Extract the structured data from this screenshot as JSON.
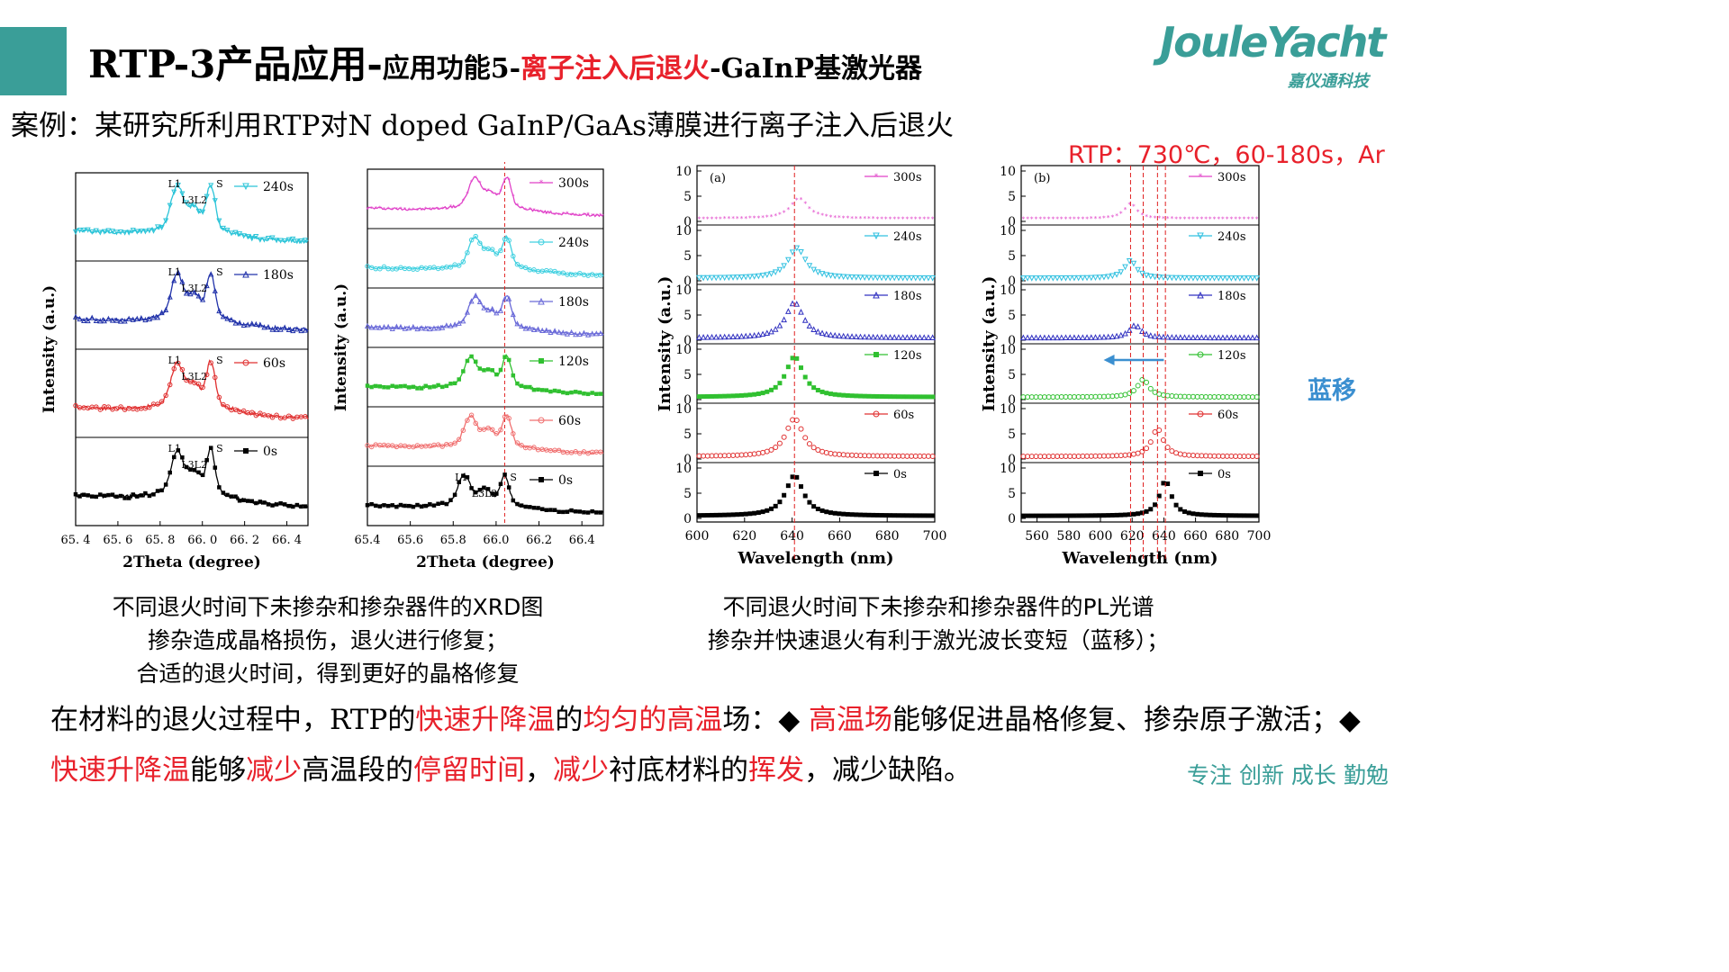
{
  "header": {
    "title_main": "RTP-3产品应用-",
    "title_sub1": "应用功能5-",
    "title_red": "离子注入后退火",
    "title_sub2": "-GaInP基激光器",
    "logo_text": "JouleYacht",
    "logo_sub": "嘉仪通科技",
    "accent_color": "#3a9e98"
  },
  "case_text": "案例：某研究所利用RTP对N doped GaInP/GaAs薄膜进行离子注入后退火",
  "rtp_conditions": "RTP：730℃，60-180s，Ar",
  "blue_shift_label": "蓝移",
  "captions": {
    "xrd_line1": "不同退火时间下未掺杂和掺杂器件的XRD图",
    "xrd_line2": "掺杂造成晶格损伤，退火进行修复；",
    "xrd_line3": "合适的退火时间，得到更好的晶格修复",
    "pl_line1": "不同退火时间下未掺杂和掺杂器件的PL光谱",
    "pl_line2": "掺杂并快速退火有利于激光波长变短（蓝移）；"
  },
  "summary": {
    "p1": "在材料的退火过程中，RTP的",
    "r1": "快速升降温",
    "p2": "的",
    "r2": "均匀的高温",
    "p3": "场：◆ ",
    "r3": "高温场",
    "p4": "能够促进晶格修复、掺杂原子激活；◆ ",
    "r4": "快速升降温",
    "p5": "能够",
    "r5": "减少",
    "p6": "高温段的",
    "r6": "停留时间",
    "p7": "，",
    "r7": "减少",
    "p8": "衬底材料的",
    "r8": "挥发",
    "p9": "，减少缺陷。"
  },
  "slogan": "专注 创新 成长 勤勉",
  "chart_data": [
    {
      "type": "line",
      "xlabel": "2Theta (degree)",
      "ylabel": "Intensity (a.u.)",
      "xlim": [
        65.4,
        66.5
      ],
      "xticks": [
        "65. 4",
        "65. 6",
        "65. 8",
        "66. 0",
        "66. 2",
        "66. 4"
      ],
      "xtick_values": [
        65.4,
        65.6,
        65.8,
        66.0,
        66.2,
        66.4
      ],
      "peak_labels": [
        "L1",
        "L3L2",
        "S"
      ],
      "series": [
        {
          "name": "240s",
          "color": "#2bc4d8",
          "marker": "tri-down",
          "peaks": [
            65.88,
            66.04
          ]
        },
        {
          "name": "180s",
          "color": "#2233aa",
          "marker": "tri-up",
          "peaks": [
            65.88,
            66.04
          ]
        },
        {
          "name": "60s",
          "color": "#e03030",
          "marker": "circle",
          "peaks": [
            65.88,
            66.04
          ]
        },
        {
          "name": "0s",
          "color": "#000000",
          "marker": "square",
          "peaks": [
            65.88,
            66.04
          ]
        }
      ]
    },
    {
      "type": "line",
      "xlabel": "2Theta (degree)",
      "ylabel": "Intensity (a.u.)",
      "xlim": [
        65.4,
        66.5
      ],
      "xticks": [
        "65.4",
        "65.6",
        "65.8",
        "66.0",
        "66.2",
        "66.4"
      ],
      "xtick_values": [
        65.4,
        65.6,
        65.8,
        66.0,
        66.2,
        66.4
      ],
      "reference_line_x": 66.04,
      "peak_labels": [
        "L1",
        "L3L2",
        "S"
      ],
      "series": [
        {
          "name": "300s",
          "color": "#e040c8",
          "marker": "star",
          "peaks": [
            65.9,
            66.05
          ]
        },
        {
          "name": "240s",
          "color": "#40d0e0",
          "marker": "circle",
          "peaks": [
            65.9,
            66.05
          ]
        },
        {
          "name": "180s",
          "color": "#6a6ad8",
          "marker": "tri-up",
          "peaks": [
            65.9,
            66.05
          ]
        },
        {
          "name": "120s",
          "color": "#30c030",
          "marker": "square",
          "peaks": [
            65.88,
            66.05
          ]
        },
        {
          "name": "60s",
          "color": "#f07070",
          "marker": "circle",
          "peaks": [
            65.88,
            66.05
          ]
        },
        {
          "name": "0s",
          "color": "#000000",
          "marker": "square",
          "peaks": [
            65.85,
            66.04
          ]
        }
      ]
    },
    {
      "type": "scatter",
      "panel_label": "(a)",
      "xlabel": "Wavelength (nm)",
      "ylabel": "Intensity (a.u.)",
      "xlim": [
        600,
        700
      ],
      "xticks": [
        600,
        620,
        640,
        660,
        680,
        700
      ],
      "yticks": [
        0,
        5,
        10
      ],
      "reference_line_x": 641,
      "series": [
        {
          "name": "300s",
          "color": "#e040c8",
          "marker": "star",
          "peak_x": 643,
          "peak_y": 4.5
        },
        {
          "name": "240s",
          "color": "#30c0e0",
          "marker": "tri-down",
          "peak_x": 642,
          "peak_y": 6.5
        },
        {
          "name": "180s",
          "color": "#3030c0",
          "marker": "tri-up",
          "peak_x": 641,
          "peak_y": 7.5
        },
        {
          "name": "120s",
          "color": "#30c030",
          "marker": "square",
          "peak_x": 641,
          "peak_y": 8.5
        },
        {
          "name": "60s",
          "color": "#e03030",
          "marker": "circle",
          "peak_x": 641,
          "peak_y": 8.0
        },
        {
          "name": "0s",
          "color": "#000000",
          "marker": "square",
          "peak_x": 641,
          "peak_y": 8.5
        }
      ]
    },
    {
      "type": "scatter",
      "panel_label": "(b)",
      "xlabel": "Wavelength (nm)",
      "ylabel": "Intensity (a.u.)",
      "xlim": [
        550,
        700
      ],
      "xticks": [
        560,
        580,
        600,
        620,
        640,
        660,
        680,
        700
      ],
      "yticks": [
        0,
        5,
        10
      ],
      "reference_lines_x": [
        619,
        627,
        636,
        641
      ],
      "blue_shift_arrow": {
        "from": 640,
        "to": 602
      },
      "series": [
        {
          "name": "300s",
          "color": "#e040c8",
          "marker": "star",
          "peak_x": 619,
          "peak_y": 3.5
        },
        {
          "name": "240s",
          "color": "#30c0e0",
          "marker": "tri-down",
          "peak_x": 619,
          "peak_y": 4.0
        },
        {
          "name": "180s",
          "color": "#3030c0",
          "marker": "tri-up",
          "peak_x": 622,
          "peak_y": 3.0
        },
        {
          "name": "120s",
          "color": "#30c030",
          "marker": "circle",
          "peak_x": 627,
          "peak_y": 4.0
        },
        {
          "name": "60s",
          "color": "#e03030",
          "marker": "circle",
          "peak_x": 636,
          "peak_y": 6.0
        },
        {
          "name": "0s",
          "color": "#000000",
          "marker": "square",
          "peak_x": 641,
          "peak_y": 7.5
        }
      ]
    }
  ]
}
